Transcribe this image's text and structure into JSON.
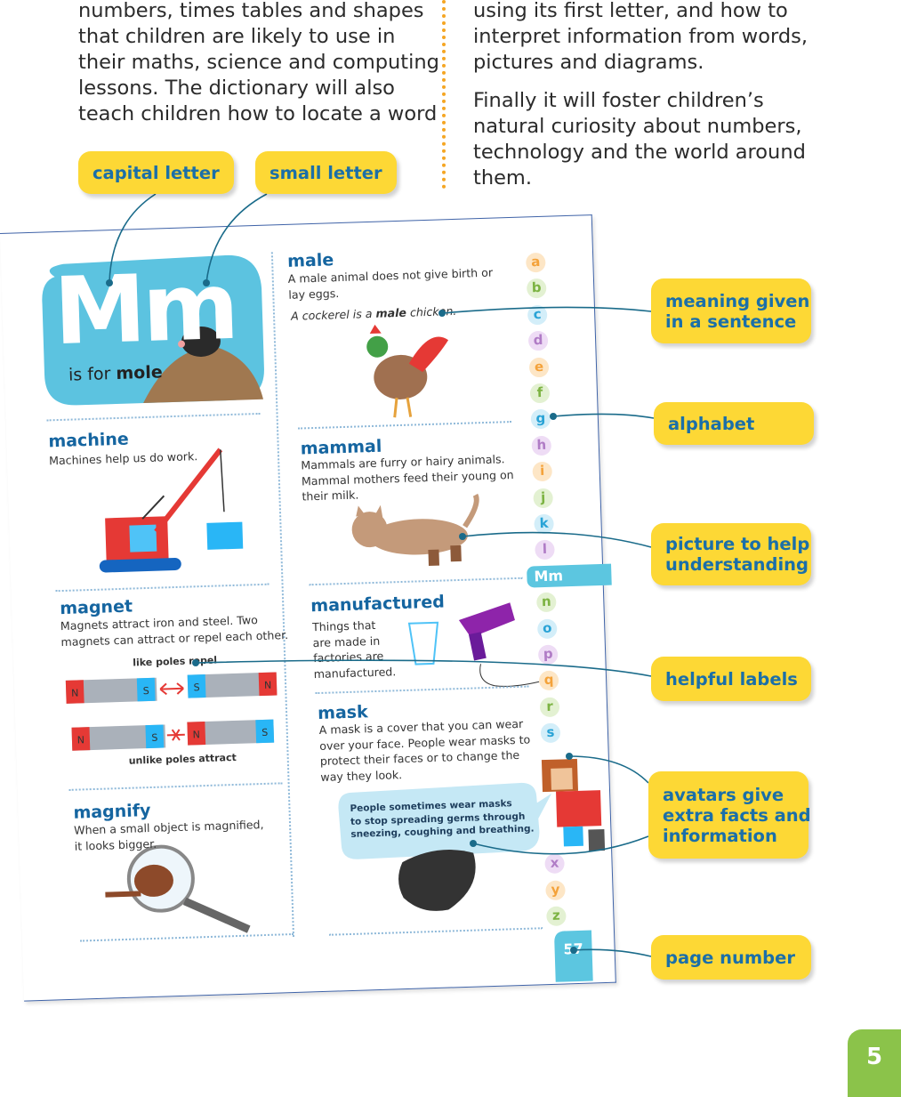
{
  "intro": {
    "left": [
      "numbers, times tables and shapes",
      "that children are likely to use in",
      "their maths, science and computing",
      "lessons. The dictionary will also",
      "teach children how to locate a word"
    ],
    "right": [
      [
        "using its first letter, and how to",
        "interpret information from words,",
        "pictures and diagrams."
      ],
      [
        "Finally it will foster children’s",
        "natural curiosity about numbers,",
        "technology and the world around",
        "them."
      ]
    ]
  },
  "callouts": {
    "capital_letter": "capital letter",
    "small_letter": "small letter",
    "meaning": [
      "meaning given",
      "in a sentence"
    ],
    "alphabet": "alphabet",
    "picture": [
      "picture to help",
      "understanding"
    ],
    "helpful_labels": "helpful labels",
    "avatars": [
      "avatars give",
      "extra facts and",
      "information"
    ],
    "page_number": "page number"
  },
  "dictionary_page": {
    "hero": {
      "letters": "Mm",
      "prefix": "is for",
      "word": "mole"
    },
    "machine": {
      "word": "machine",
      "definition": [
        "Machines help us do work."
      ]
    },
    "magnet": {
      "word": "magnet",
      "definition": [
        "Magnets attract iron and steel. Two",
        "magnets can attract or repel each other."
      ],
      "label_repel": "like poles repel",
      "label_attract": "unlike poles attract",
      "north": "N",
      "south": "S"
    },
    "magnify": {
      "word": "magnify",
      "definition": [
        "When a small object is magnified,",
        "it looks bigger."
      ]
    },
    "male": {
      "word": "male",
      "definition": [
        "A male animal does not give birth or",
        "lay eggs."
      ],
      "example": {
        "before": "A cockerel is a ",
        "bold": "male",
        "after": " chicken."
      }
    },
    "mammal": {
      "word": "mammal",
      "definition": [
        "Mammals are furry or hairy animals.",
        "Mammal mothers feed their young on",
        "their milk."
      ]
    },
    "manufactured": {
      "word": "manufactured",
      "definition": [
        "Things that",
        "are made in",
        "factories are",
        "manufactured."
      ]
    },
    "mask": {
      "word": "mask",
      "definition": [
        "A mask is a cover that you can wear",
        "over your face. People wear masks to",
        "protect their faces or to change the",
        "way they look."
      ],
      "avatar_fact": [
        "People sometimes wear masks",
        "to stop spreading germs through",
        "sneezing, coughing and breathing."
      ]
    },
    "alphabet": [
      "a",
      "b",
      "c",
      "d",
      "e",
      "f",
      "g",
      "h",
      "i",
      "j",
      "k",
      "l",
      "Mm",
      "n",
      "o",
      "p",
      "q",
      "r",
      "s",
      "x",
      "y",
      "z"
    ],
    "page_number": "57"
  },
  "corner_page_number": "5"
}
